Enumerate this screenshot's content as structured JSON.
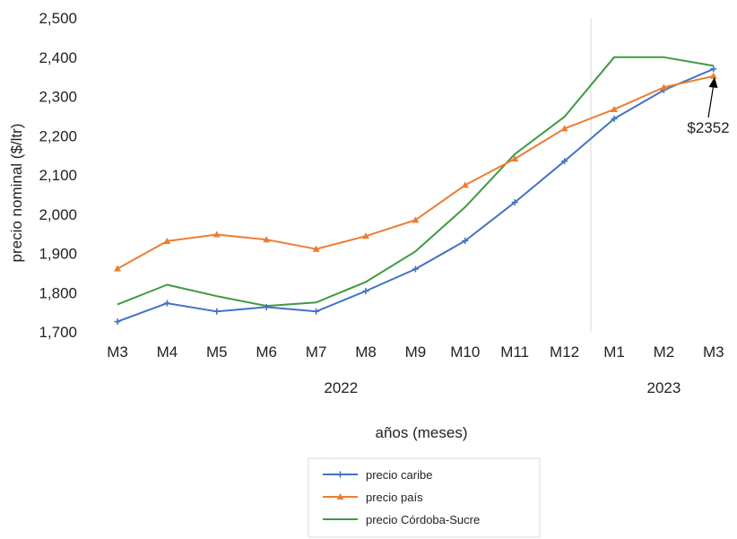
{
  "chart_data": {
    "type": "line",
    "title": "",
    "xlabel": "años (meses)",
    "ylabel": "precio nominal ($/ltr)",
    "categories": [
      "M3",
      "M4",
      "M5",
      "M6",
      "M7",
      "M8",
      "M9",
      "M10",
      "M11",
      "M12",
      "M1",
      "M2",
      "M3"
    ],
    "year_groups": [
      {
        "label": "2022",
        "start": 0,
        "end": 9
      },
      {
        "label": "2023",
        "start": 10,
        "end": 12
      }
    ],
    "ylim": [
      1700,
      2500
    ],
    "yticks": [
      1700,
      1800,
      1900,
      2000,
      2100,
      2200,
      2300,
      2400,
      2500
    ],
    "ytick_labels": [
      "1,700",
      "1,800",
      "1,900",
      "2,000",
      "2,100",
      "2,200",
      "2,300",
      "2,400",
      "2,500"
    ],
    "grid": false,
    "legend_position": "bottom",
    "series": [
      {
        "name": "precio caribe",
        "color": "#4472c4",
        "marker": "plus",
        "values": [
          1726,
          1773,
          1752,
          1763,
          1752,
          1804,
          1860,
          1932,
          2030,
          2135,
          2243,
          2316,
          2370
        ]
      },
      {
        "name": "precio país",
        "color": "#ed7d31",
        "marker": "triangle",
        "values": [
          1861,
          1931,
          1948,
          1935,
          1911,
          1944,
          1985,
          2074,
          2141,
          2218,
          2267,
          2323,
          2352
        ]
      },
      {
        "name": "precio Córdoba-Sucre",
        "color": "#3f9a43",
        "marker": "none",
        "values": [
          1770,
          1820,
          1791,
          1766,
          1775,
          1827,
          1905,
          2018,
          2153,
          2248,
          2400,
          2400,
          2378
        ]
      }
    ],
    "annotation": {
      "text": "$2352"
    }
  }
}
